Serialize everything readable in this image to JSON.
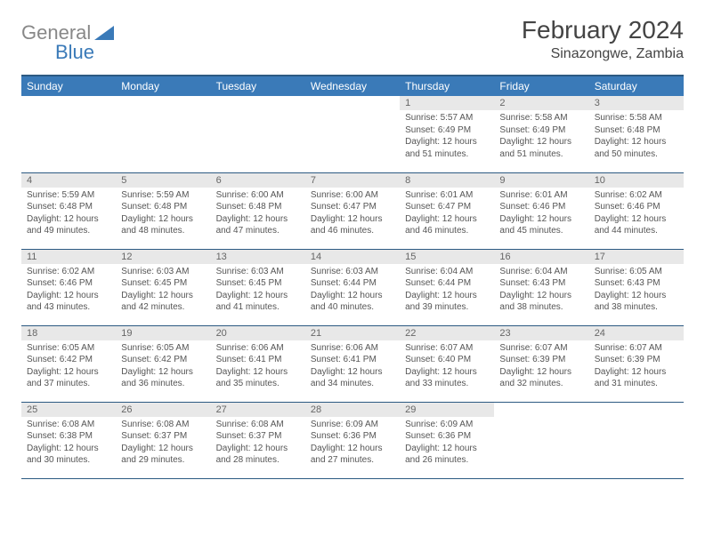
{
  "logo": {
    "part1": "General",
    "part2": "Blue"
  },
  "title": "February 2024",
  "location": "Sinazongwe, Zambia",
  "header_bg": "#3a7ab8",
  "header_text": "#ffffff",
  "daynum_bg": "#e8e8e8",
  "border_color": "#2c5a82",
  "columns": [
    "Sunday",
    "Monday",
    "Tuesday",
    "Wednesday",
    "Thursday",
    "Friday",
    "Saturday"
  ],
  "weeks": [
    [
      null,
      null,
      null,
      null,
      {
        "n": "1",
        "sr": "5:57 AM",
        "ss": "6:49 PM",
        "dl": "12 hours and 51 minutes."
      },
      {
        "n": "2",
        "sr": "5:58 AM",
        "ss": "6:49 PM",
        "dl": "12 hours and 51 minutes."
      },
      {
        "n": "3",
        "sr": "5:58 AM",
        "ss": "6:48 PM",
        "dl": "12 hours and 50 minutes."
      }
    ],
    [
      {
        "n": "4",
        "sr": "5:59 AM",
        "ss": "6:48 PM",
        "dl": "12 hours and 49 minutes."
      },
      {
        "n": "5",
        "sr": "5:59 AM",
        "ss": "6:48 PM",
        "dl": "12 hours and 48 minutes."
      },
      {
        "n": "6",
        "sr": "6:00 AM",
        "ss": "6:48 PM",
        "dl": "12 hours and 47 minutes."
      },
      {
        "n": "7",
        "sr": "6:00 AM",
        "ss": "6:47 PM",
        "dl": "12 hours and 46 minutes."
      },
      {
        "n": "8",
        "sr": "6:01 AM",
        "ss": "6:47 PM",
        "dl": "12 hours and 46 minutes."
      },
      {
        "n": "9",
        "sr": "6:01 AM",
        "ss": "6:46 PM",
        "dl": "12 hours and 45 minutes."
      },
      {
        "n": "10",
        "sr": "6:02 AM",
        "ss": "6:46 PM",
        "dl": "12 hours and 44 minutes."
      }
    ],
    [
      {
        "n": "11",
        "sr": "6:02 AM",
        "ss": "6:46 PM",
        "dl": "12 hours and 43 minutes."
      },
      {
        "n": "12",
        "sr": "6:03 AM",
        "ss": "6:45 PM",
        "dl": "12 hours and 42 minutes."
      },
      {
        "n": "13",
        "sr": "6:03 AM",
        "ss": "6:45 PM",
        "dl": "12 hours and 41 minutes."
      },
      {
        "n": "14",
        "sr": "6:03 AM",
        "ss": "6:44 PM",
        "dl": "12 hours and 40 minutes."
      },
      {
        "n": "15",
        "sr": "6:04 AM",
        "ss": "6:44 PM",
        "dl": "12 hours and 39 minutes."
      },
      {
        "n": "16",
        "sr": "6:04 AM",
        "ss": "6:43 PM",
        "dl": "12 hours and 38 minutes."
      },
      {
        "n": "17",
        "sr": "6:05 AM",
        "ss": "6:43 PM",
        "dl": "12 hours and 38 minutes."
      }
    ],
    [
      {
        "n": "18",
        "sr": "6:05 AM",
        "ss": "6:42 PM",
        "dl": "12 hours and 37 minutes."
      },
      {
        "n": "19",
        "sr": "6:05 AM",
        "ss": "6:42 PM",
        "dl": "12 hours and 36 minutes."
      },
      {
        "n": "20",
        "sr": "6:06 AM",
        "ss": "6:41 PM",
        "dl": "12 hours and 35 minutes."
      },
      {
        "n": "21",
        "sr": "6:06 AM",
        "ss": "6:41 PM",
        "dl": "12 hours and 34 minutes."
      },
      {
        "n": "22",
        "sr": "6:07 AM",
        "ss": "6:40 PM",
        "dl": "12 hours and 33 minutes."
      },
      {
        "n": "23",
        "sr": "6:07 AM",
        "ss": "6:39 PM",
        "dl": "12 hours and 32 minutes."
      },
      {
        "n": "24",
        "sr": "6:07 AM",
        "ss": "6:39 PM",
        "dl": "12 hours and 31 minutes."
      }
    ],
    [
      {
        "n": "25",
        "sr": "6:08 AM",
        "ss": "6:38 PM",
        "dl": "12 hours and 30 minutes."
      },
      {
        "n": "26",
        "sr": "6:08 AM",
        "ss": "6:37 PM",
        "dl": "12 hours and 29 minutes."
      },
      {
        "n": "27",
        "sr": "6:08 AM",
        "ss": "6:37 PM",
        "dl": "12 hours and 28 minutes."
      },
      {
        "n": "28",
        "sr": "6:09 AM",
        "ss": "6:36 PM",
        "dl": "12 hours and 27 minutes."
      },
      {
        "n": "29",
        "sr": "6:09 AM",
        "ss": "6:36 PM",
        "dl": "12 hours and 26 minutes."
      },
      null,
      null
    ]
  ],
  "labels": {
    "sunrise": "Sunrise:",
    "sunset": "Sunset:",
    "daylight": "Daylight:"
  }
}
